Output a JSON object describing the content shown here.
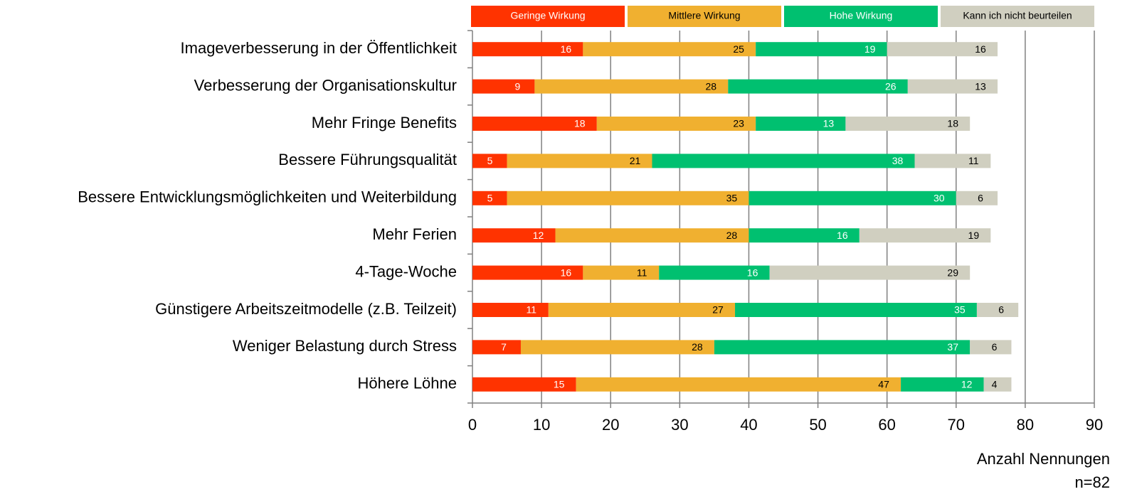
{
  "chart_data": {
    "type": "stacked_barh",
    "categories": [
      "Imageverbesserung in der Öffentlichkeit",
      "Verbesserung der Organisationskultur",
      "Mehr Fringe Benefits",
      "Bessere Führungsqualität",
      "Bessere Entwicklungsmöglichkeiten und Weiterbildung",
      "Mehr Ferien",
      "4-Tage-Woche",
      "Günstigere Arbeitszeitmodelle (z.B. Teilzeit)",
      "Weniger Belastung durch Stress",
      "Höhere Löhne"
    ],
    "series": [
      {
        "name": "Geringe Wirkung",
        "color": "#ff3300",
        "label_color": "#ffffff",
        "values": [
          16,
          9,
          18,
          5,
          5,
          12,
          16,
          11,
          7,
          15
        ]
      },
      {
        "name": "Mittlere Wirkung",
        "color": "#f0b030",
        "label_color": "#000000",
        "values": [
          25,
          28,
          23,
          21,
          35,
          28,
          11,
          27,
          28,
          47
        ]
      },
      {
        "name": "Hohe Wirkung",
        "color": "#00c070",
        "label_color": "#ffffff",
        "values": [
          19,
          26,
          13,
          38,
          30,
          16,
          16,
          35,
          37,
          12
        ]
      },
      {
        "name": "Kann ich nicht beurteilen",
        "color": "#d0cfc0",
        "label_color": "#000000",
        "values": [
          16,
          13,
          18,
          11,
          6,
          19,
          29,
          6,
          6,
          4
        ]
      }
    ],
    "xlim": [
      0,
      90
    ],
    "xticks": [
      0,
      10,
      20,
      30,
      40,
      50,
      60,
      70,
      80,
      90
    ],
    "grid": true,
    "x_label": "Anzahl Nennungen",
    "note": "n=82",
    "legend": "top"
  }
}
